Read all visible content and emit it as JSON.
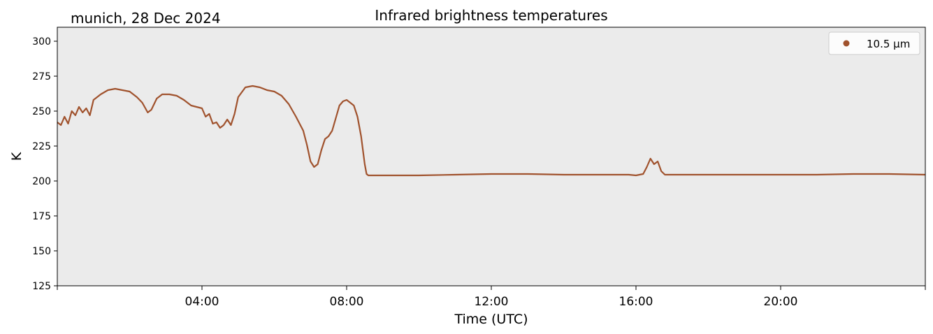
{
  "chart_data": {
    "type": "line",
    "title": "Infrared brightness temperatures",
    "subtitle": "munich, 28 Dec 2024",
    "xlabel": "Time (UTC)",
    "ylabel": "K",
    "xlim_hours": [
      0,
      24
    ],
    "ylim": [
      125,
      310
    ],
    "x_ticks": [
      {
        "hour": 4,
        "label": "04:00"
      },
      {
        "hour": 8,
        "label": "08:00"
      },
      {
        "hour": 12,
        "label": "12:00"
      },
      {
        "hour": 16,
        "label": "16:00"
      },
      {
        "hour": 20,
        "label": "20:00"
      }
    ],
    "y_ticks": [
      125,
      150,
      175,
      200,
      225,
      250,
      275,
      300
    ],
    "grid": false,
    "legend_position": "top-right",
    "background": "#ebebeb",
    "series": [
      {
        "name": "10.5 µm",
        "color": "#a0522d",
        "x_hours": [
          0.0,
          0.1,
          0.2,
          0.3,
          0.4,
          0.5,
          0.6,
          0.7,
          0.8,
          0.9,
          1.0,
          1.2,
          1.4,
          1.6,
          1.8,
          2.0,
          2.2,
          2.35,
          2.5,
          2.6,
          2.75,
          2.9,
          3.1,
          3.3,
          3.5,
          3.7,
          3.85,
          4.0,
          4.1,
          4.2,
          4.3,
          4.4,
          4.5,
          4.6,
          4.7,
          4.8,
          4.9,
          5.0,
          5.2,
          5.4,
          5.6,
          5.8,
          6.0,
          6.2,
          6.4,
          6.6,
          6.8,
          6.9,
          7.0,
          7.1,
          7.2,
          7.3,
          7.4,
          7.5,
          7.6,
          7.7,
          7.8,
          7.9,
          8.0,
          8.1,
          8.2,
          8.3,
          8.4,
          8.5,
          8.55,
          8.6,
          8.7,
          9.0,
          10.0,
          11.0,
          12.0,
          13.0,
          14.0,
          15.0,
          15.8,
          16.0,
          16.2,
          16.3,
          16.4,
          16.5,
          16.6,
          16.7,
          16.8,
          17.0,
          18.0,
          19.0,
          20.0,
          21.0,
          22.0,
          23.0,
          24.0
        ],
        "values": [
          242,
          240,
          246,
          241,
          250,
          247,
          253,
          249,
          252,
          247,
          258,
          262,
          265,
          266,
          265,
          264,
          260,
          256,
          249,
          251,
          259,
          262,
          262,
          261,
          258,
          254,
          253,
          252,
          246,
          248,
          241,
          242,
          238,
          240,
          244,
          240,
          248,
          260,
          267,
          268,
          267,
          265,
          264,
          261,
          255,
          246,
          236,
          226,
          214,
          210,
          212,
          222,
          230,
          232,
          236,
          245,
          254,
          257,
          258,
          256,
          254,
          246,
          232,
          212,
          205,
          204,
          204,
          204,
          204,
          204.5,
          205,
          205,
          204.5,
          204.5,
          204.5,
          204,
          205,
          210,
          216,
          212,
          214,
          207,
          204.5,
          204.5,
          204.5,
          204.5,
          204.5,
          204.5,
          205,
          205,
          204.5
        ]
      }
    ]
  }
}
